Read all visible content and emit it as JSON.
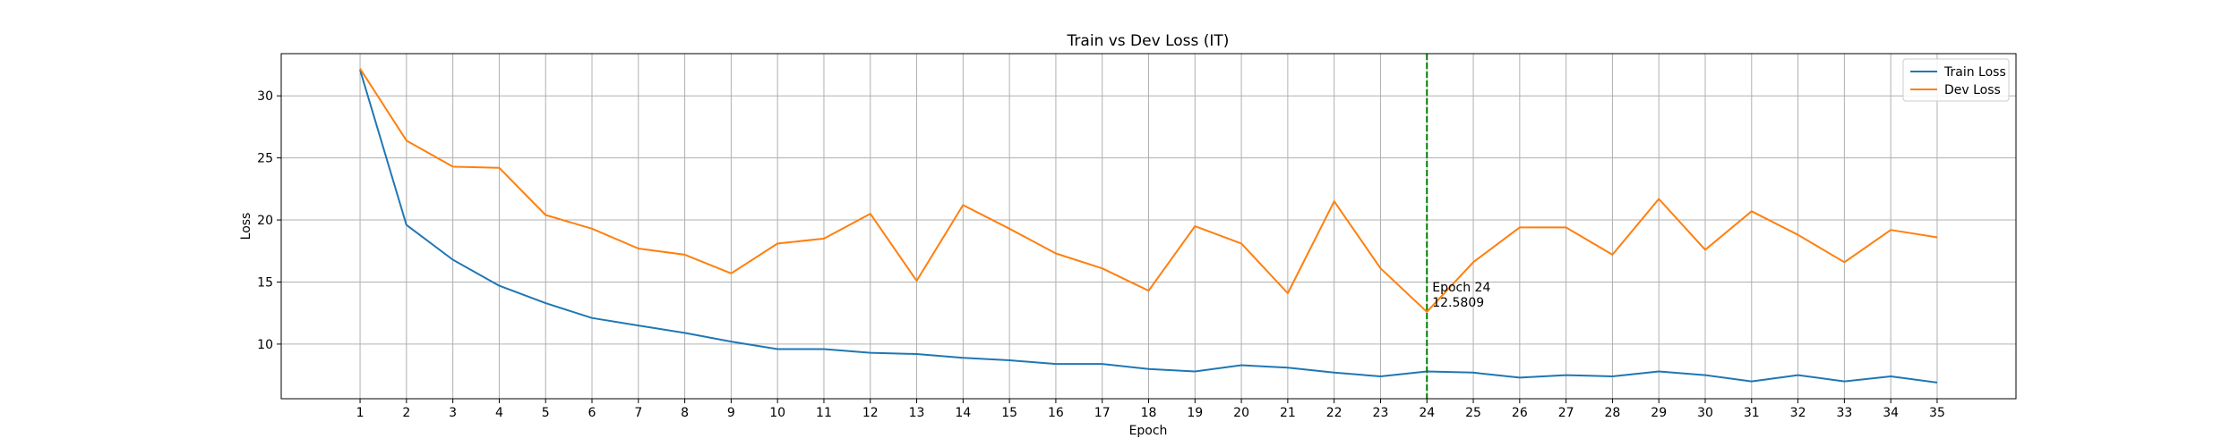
{
  "chart_data": {
    "type": "line",
    "title": "Train vs Dev Loss (IT)",
    "xlabel": "Epoch",
    "ylabel": "Loss",
    "x": [
      1,
      2,
      3,
      4,
      5,
      6,
      7,
      8,
      9,
      10,
      11,
      12,
      13,
      14,
      15,
      16,
      17,
      18,
      19,
      20,
      21,
      22,
      23,
      24,
      25,
      26,
      27,
      28,
      29,
      30,
      31,
      32,
      33,
      34,
      35
    ],
    "xlim": [
      -0.7,
      36.7
    ],
    "ylim": [
      5.6,
      33.4
    ],
    "yticks": [
      10,
      15,
      20,
      25,
      30
    ],
    "grid": true,
    "legend_position": "top-right",
    "series": [
      {
        "name": "Train Loss",
        "color": "#1f77b4",
        "values": [
          32.1,
          19.6,
          16.8,
          14.7,
          13.3,
          12.1,
          11.5,
          10.9,
          10.2,
          9.6,
          9.6,
          9.3,
          9.2,
          8.9,
          8.7,
          8.4,
          8.4,
          8.0,
          7.8,
          8.3,
          8.1,
          7.7,
          7.4,
          7.8,
          7.7,
          7.3,
          7.5,
          7.4,
          7.8,
          7.5,
          7.0,
          7.5,
          7.0,
          7.4,
          6.9
        ]
      },
      {
        "name": "Dev Loss",
        "color": "#ff7f0e",
        "values": [
          32.2,
          26.4,
          24.3,
          24.2,
          20.4,
          19.3,
          17.7,
          17.2,
          15.7,
          18.1,
          18.5,
          20.5,
          15.1,
          21.2,
          19.3,
          17.3,
          16.1,
          14.3,
          19.5,
          18.1,
          14.1,
          21.5,
          16.1,
          12.6,
          16.6,
          19.4,
          19.4,
          17.2,
          21.7,
          17.6,
          20.7,
          18.8,
          16.6,
          19.2,
          18.6
        ]
      }
    ],
    "annotation": {
      "x": 24,
      "color": "#007f00",
      "line1": "Epoch 24",
      "line2": "12.5809"
    }
  }
}
